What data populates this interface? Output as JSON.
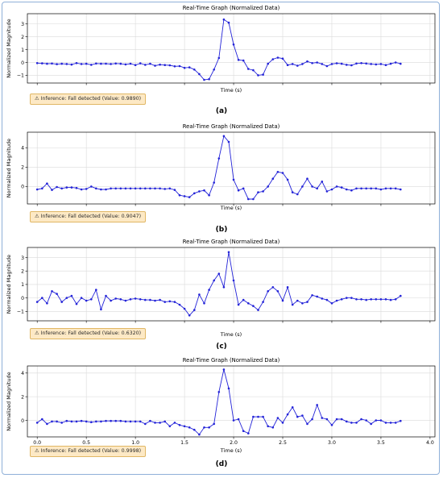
{
  "chart_data": [
    {
      "type": "line",
      "title": "Real-Time Graph (Normalized Data)",
      "xlabel": "Time (s)",
      "ylabel": "Normalized Magnitude",
      "xlim": [
        -0.1,
        4.05
      ],
      "ylim": [
        -1.6,
        3.8
      ],
      "yticks": [
        -1,
        0,
        1,
        2,
        3
      ],
      "yticklabels": [
        "−1",
        "0",
        "1",
        "2",
        "3"
      ],
      "xticks": [],
      "xticklabels": [],
      "grid": true,
      "line_color": "#2323d8",
      "x_start": 0,
      "x_step": 0.05,
      "y": [
        -0.05,
        -0.07,
        -0.1,
        -0.08,
        -0.13,
        -0.1,
        -0.12,
        -0.16,
        -0.05,
        -0.12,
        -0.1,
        -0.18,
        -0.08,
        -0.1,
        -0.09,
        -0.12,
        -0.08,
        -0.1,
        -0.15,
        -0.09,
        -0.2,
        -0.07,
        -0.18,
        -0.1,
        -0.25,
        -0.17,
        -0.2,
        -0.22,
        -0.3,
        -0.28,
        -0.42,
        -0.38,
        -0.55,
        -0.9,
        -1.35,
        -1.3,
        -0.55,
        0.35,
        3.35,
        3.1,
        1.4,
        0.2,
        0.15,
        -0.5,
        -0.6,
        -1.0,
        -0.95,
        -0.1,
        0.25,
        0.38,
        0.3,
        -0.2,
        -0.12,
        -0.25,
        -0.12,
        0.08,
        -0.05,
        0.0,
        -0.12,
        -0.28,
        -0.12,
        -0.06,
        -0.1,
        -0.18,
        -0.22,
        -0.08,
        -0.05,
        -0.08,
        -0.12,
        -0.15,
        -0.12,
        -0.2,
        -0.1,
        0.0,
        -0.1
      ],
      "inference": "⚠ Inference: Fall detected (Value: 0.9890)",
      "caption": "(a)"
    },
    {
      "type": "line",
      "title": "Real-Time Graph (Normalized Data)",
      "xlabel": "Time (s)",
      "ylabel": "Normalized Magnitude",
      "xlim": [
        -0.1,
        4.05
      ],
      "ylim": [
        -1.8,
        5.6
      ],
      "yticks": [
        0,
        2,
        4
      ],
      "yticklabels": [
        "0",
        "2",
        "4"
      ],
      "xticks": [],
      "xticklabels": [],
      "grid": true,
      "line_color": "#2323d8",
      "x_start": 0,
      "x_step": 0.05,
      "y": [
        -0.3,
        -0.2,
        0.3,
        -0.35,
        -0.05,
        -0.2,
        -0.1,
        -0.1,
        -0.15,
        -0.3,
        -0.25,
        0.0,
        -0.2,
        -0.3,
        -0.3,
        -0.2,
        -0.2,
        -0.2,
        -0.2,
        -0.2,
        -0.2,
        -0.2,
        -0.2,
        -0.2,
        -0.2,
        -0.2,
        -0.25,
        -0.2,
        -0.35,
        -0.9,
        -1.0,
        -1.1,
        -0.7,
        -0.5,
        -0.4,
        -0.9,
        0.4,
        2.9,
        5.2,
        4.6,
        0.7,
        -0.4,
        -0.2,
        -1.3,
        -1.3,
        -0.6,
        -0.5,
        0.0,
        0.8,
        1.5,
        1.4,
        0.7,
        -0.6,
        -0.8,
        0.0,
        0.8,
        0.0,
        -0.2,
        0.5,
        -0.5,
        -0.3,
        0.0,
        -0.1,
        -0.3,
        -0.4,
        -0.2,
        -0.2,
        -0.2,
        -0.2,
        -0.2,
        -0.3,
        -0.2,
        -0.2,
        -0.2,
        -0.3
      ],
      "inference": "⚠ Inference: Fall detected (Value: 0.9047)",
      "caption": "(b)"
    },
    {
      "type": "line",
      "title": "Real-Time Graph (Normalized Data)",
      "xlabel": "Time (s)",
      "ylabel": "Normalized Magnitude",
      "xlim": [
        -0.1,
        4.05
      ],
      "ylim": [
        -1.7,
        3.75
      ],
      "yticks": [
        -1,
        0,
        1,
        2,
        3
      ],
      "yticklabels": [
        "−1",
        "0",
        "1",
        "2",
        "3"
      ],
      "xticks": [],
      "xticklabels": [],
      "grid": true,
      "line_color": "#2323d8",
      "x_start": 0,
      "x_step": 0.05,
      "y": [
        -0.3,
        0.0,
        -0.4,
        0.5,
        0.3,
        -0.3,
        0.0,
        0.15,
        -0.45,
        0.0,
        -0.2,
        -0.1,
        0.6,
        -0.85,
        0.15,
        -0.2,
        -0.05,
        -0.1,
        -0.2,
        -0.1,
        -0.05,
        -0.1,
        -0.15,
        -0.15,
        -0.2,
        -0.15,
        -0.3,
        -0.25,
        -0.3,
        -0.5,
        -0.8,
        -1.3,
        -0.9,
        0.25,
        -0.4,
        0.6,
        1.3,
        1.8,
        0.8,
        3.4,
        1.3,
        -0.5,
        -0.15,
        -0.4,
        -0.6,
        -0.9,
        -0.3,
        0.5,
        0.8,
        0.5,
        -0.2,
        0.8,
        -0.5,
        -0.2,
        -0.4,
        -0.3,
        0.2,
        0.1,
        -0.05,
        -0.15,
        -0.4,
        -0.2,
        -0.1,
        0.0,
        0.0,
        -0.1,
        -0.1,
        -0.15,
        -0.1,
        -0.1,
        -0.1,
        -0.1,
        -0.15,
        -0.1,
        0.15
      ],
      "inference": "⚠ Inference: Fall detected (Value: 0.6320)",
      "caption": "(c)"
    },
    {
      "type": "line",
      "title": "Real-Time Graph (Normalized Data)",
      "xlabel": "Time (s)",
      "ylabel": "Normalized Magnitude",
      "xlim": [
        -0.1,
        4.05
      ],
      "ylim": [
        -1.4,
        4.6
      ],
      "yticks": [
        0,
        2,
        4
      ],
      "yticklabels": [
        "0",
        "2",
        "4"
      ],
      "xticks": [
        0.0,
        0.5,
        1.0,
        1.5,
        2.0,
        2.5,
        3.0,
        3.5,
        4.0
      ],
      "xticklabels": [
        "0.0",
        "0.5",
        "1.0",
        "1.5",
        "2.0",
        "2.5",
        "3.0",
        "3.5",
        "4.0"
      ],
      "grid": true,
      "line_color": "#2323d8",
      "x_start": 0,
      "x_step": 0.05,
      "y": [
        -0.2,
        0.1,
        -0.3,
        -0.1,
        -0.1,
        -0.2,
        -0.05,
        -0.1,
        -0.1,
        -0.05,
        -0.1,
        -0.15,
        -0.1,
        -0.1,
        -0.05,
        -0.05,
        -0.05,
        -0.05,
        -0.1,
        -0.1,
        -0.1,
        -0.1,
        -0.3,
        -0.05,
        -0.2,
        -0.2,
        -0.1,
        -0.5,
        -0.2,
        -0.4,
        -0.5,
        -0.6,
        -0.8,
        -1.2,
        -0.6,
        -0.6,
        -0.3,
        2.4,
        4.3,
        2.7,
        0.0,
        0.1,
        -0.9,
        -1.1,
        0.3,
        0.3,
        0.3,
        -0.5,
        -0.6,
        0.2,
        -0.2,
        0.5,
        1.1,
        0.3,
        0.4,
        -0.3,
        0.1,
        1.3,
        0.2,
        0.1,
        -0.4,
        0.1,
        0.1,
        -0.1,
        -0.2,
        -0.2,
        0.1,
        0.0,
        -0.3,
        0.0,
        0.0,
        -0.2,
        -0.2,
        -0.2,
        -0.05
      ],
      "inference": "⚠ Inference: Fall detected (Value: 0.9998)",
      "caption": "(d)"
    }
  ]
}
